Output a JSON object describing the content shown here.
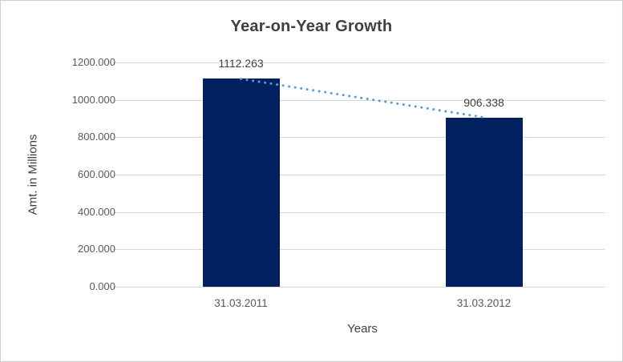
{
  "chart_data": {
    "type": "bar",
    "title": "Year-on-Year Growth",
    "xlabel": "Years",
    "ylabel": "Amt. in Millions",
    "categories": [
      "31.03.2011",
      "31.03.2012"
    ],
    "values": [
      1112.263,
      906.338
    ],
    "data_labels": [
      "1112.263",
      "906.338"
    ],
    "y_tick_labels": [
      "1200.000",
      "1000.000",
      "800.000",
      "600.000",
      "400.000",
      "200.000",
      "0.000"
    ],
    "ylim": [
      0,
      1200
    ],
    "grid": true,
    "legend": "none",
    "trendline": {
      "type": "linear",
      "style": "dotted",
      "from_value": 1112.263,
      "to_value": 906.338
    },
    "colors": {
      "bar_fill": "#002060",
      "trendline": "#5b9bd5",
      "gridline": "#d9d9d9",
      "title_text": "#404040",
      "axis_text": "#595959",
      "data_label_text": "#404040",
      "background": "#ffffff",
      "border": "#d0cece"
    }
  }
}
